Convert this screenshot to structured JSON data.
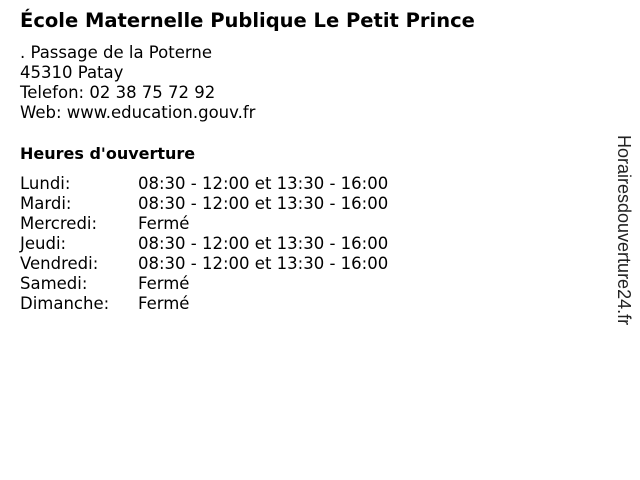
{
  "title": "École Maternelle Publique Le Petit Prince",
  "address": {
    "street": ". Passage de la Poterne",
    "city": "45310 Patay",
    "phone": "Telefon: 02 38 75 72 92",
    "web": "Web: www.education.gouv.fr"
  },
  "hours_heading": "Heures d'ouverture",
  "hours": [
    {
      "day": "Lundi:",
      "time": "08:30 - 12:00 et 13:30 - 16:00"
    },
    {
      "day": "Mardi:",
      "time": "08:30 - 12:00 et 13:30 - 16:00"
    },
    {
      "day": "Mercredi:",
      "time": "Fermé"
    },
    {
      "day": "Jeudi:",
      "time": "08:30 - 12:00 et 13:30 - 16:00"
    },
    {
      "day": "Vendredi:",
      "time": "08:30 - 12:00 et 13:30 - 16:00"
    },
    {
      "day": "Samedi:",
      "time": "Fermé"
    },
    {
      "day": "Dimanche:",
      "time": "Fermé"
    }
  ],
  "watermark": "Horairesdouverture24.fr"
}
